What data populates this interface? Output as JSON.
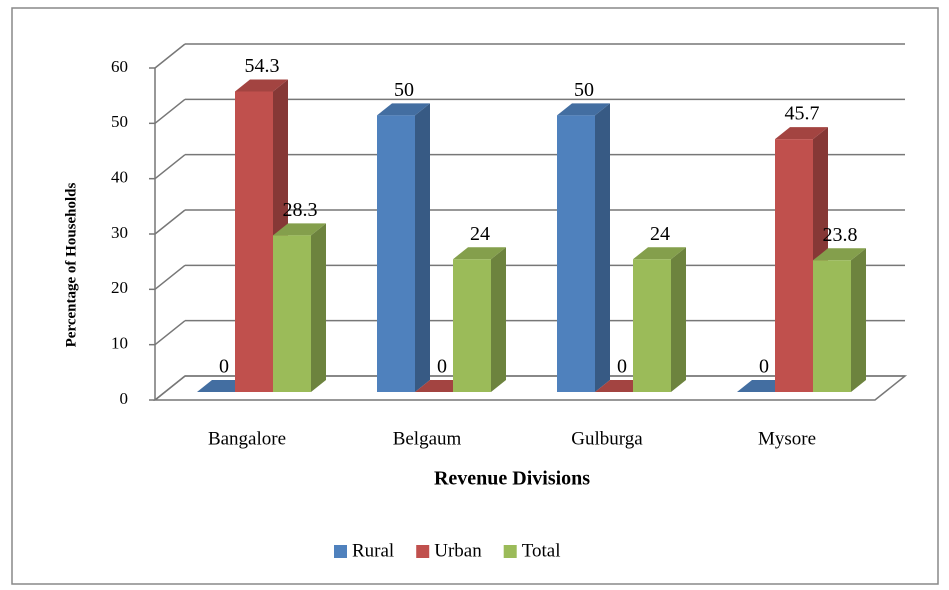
{
  "chart_data": {
    "type": "bar3d",
    "categories": [
      "Bangalore",
      "Belgaum",
      "Gulburga",
      "Mysore"
    ],
    "series": [
      {
        "name": "Rural",
        "color": "#4f81bd",
        "values": [
          0,
          50,
          50,
          0
        ]
      },
      {
        "name": "Urban",
        "color": "#c0504d",
        "values": [
          54.3,
          0,
          0,
          45.7
        ]
      },
      {
        "name": "Total",
        "color": "#9bbb59",
        "values": [
          28.3,
          24,
          24,
          23.8
        ]
      }
    ],
    "x_label": "Revenue Divisions",
    "y_label": "Percentage of Households",
    "ylim": [
      0,
      60
    ],
    "yticks": [
      0,
      10,
      20,
      30,
      40,
      50,
      60
    ],
    "grid": true,
    "legend": "bottom"
  }
}
